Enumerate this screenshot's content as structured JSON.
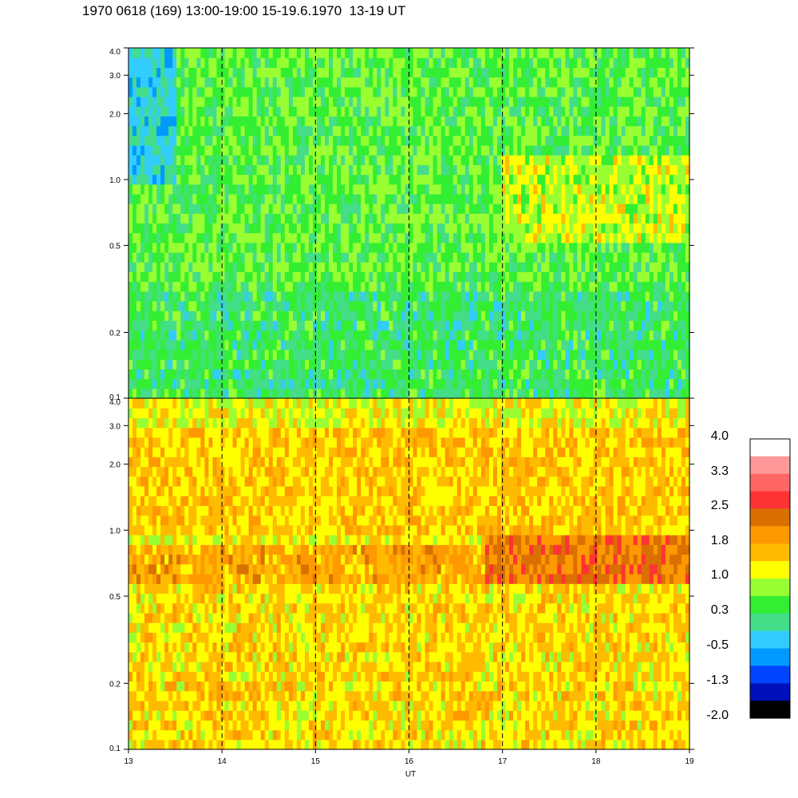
{
  "title": "1970 0618 (169) 13:00-19:00 15-19.6.1970  13-19 UT",
  "chart_data": [
    {
      "type": "heatmap",
      "panel": "top",
      "x_range": [
        13,
        19
      ],
      "y_range": [
        0.1,
        4.0
      ],
      "y_scale": "log",
      "y_ticks": [
        "4.0",
        "3.0",
        "2.0",
        "1.0",
        "0.5",
        "0.2",
        "0.1"
      ],
      "y_tick_values": [
        4.0,
        3.0,
        2.0,
        1.0,
        0.5,
        0.2,
        0.1
      ],
      "hour_markers": [
        14,
        15,
        16,
        17,
        18
      ],
      "features": [
        {
          "x_range": [
            13.0,
            13.5
          ],
          "y_range": [
            1.0,
            4.0
          ],
          "value": -0.3
        },
        {
          "x_range": [
            17.0,
            19.0
          ],
          "y_range": [
            0.5,
            1.3
          ],
          "value": 1.0
        },
        {
          "x_range": [
            13.0,
            19.0
          ],
          "y_range": [
            0.1,
            0.3
          ],
          "value": 0.2
        }
      ],
      "background_value": 0.5
    },
    {
      "type": "heatmap",
      "panel": "bottom",
      "x_range": [
        13,
        19
      ],
      "y_range": [
        0.1,
        4.0
      ],
      "y_scale": "log",
      "y_ticks": [
        "4.0",
        "3.0",
        "2.0",
        "1.0",
        "0.5",
        "0.2",
        "0.1"
      ],
      "y_tick_values": [
        4.0,
        3.0,
        2.0,
        1.0,
        0.5,
        0.2,
        0.1
      ],
      "x_ticks": [
        "13",
        "14",
        "15",
        "16",
        "17",
        "18",
        "19"
      ],
      "x_tick_values": [
        13,
        14,
        15,
        16,
        17,
        18,
        19
      ],
      "xlabel": "UT",
      "hour_markers": [
        14,
        15,
        16,
        17,
        18
      ],
      "features": [
        {
          "x_range": [
            13.0,
            19.0
          ],
          "y_range": [
            0.6,
            0.9
          ],
          "value": 1.8
        },
        {
          "x_range": [
            16.8,
            19.0
          ],
          "y_range": [
            0.55,
            1.0
          ],
          "value": 2.3
        },
        {
          "x_range": [
            13.0,
            19.0
          ],
          "y_range": [
            1.0,
            3.0
          ],
          "value": 1.5
        },
        {
          "x_range": [
            13.0,
            19.0
          ],
          "y_range": [
            0.1,
            0.6
          ],
          "value": 1.4
        }
      ],
      "background_value": 1.2
    }
  ],
  "colorbar": {
    "labels": [
      "4.0",
      "3.3",
      "2.5",
      "1.8",
      "1.0",
      "0.3",
      "-0.5",
      "-1.3",
      "-2.0"
    ],
    "colors": [
      "#ffffff",
      "#ff9999",
      "#ff6666",
      "#ff3333",
      "#d97000",
      "#ff9900",
      "#ffbb00",
      "#ffff00",
      "#99ff33",
      "#33ee33",
      "#44dd88",
      "#33ccff",
      "#0099ff",
      "#0044ff",
      "#0011bb",
      "#000000"
    ]
  }
}
